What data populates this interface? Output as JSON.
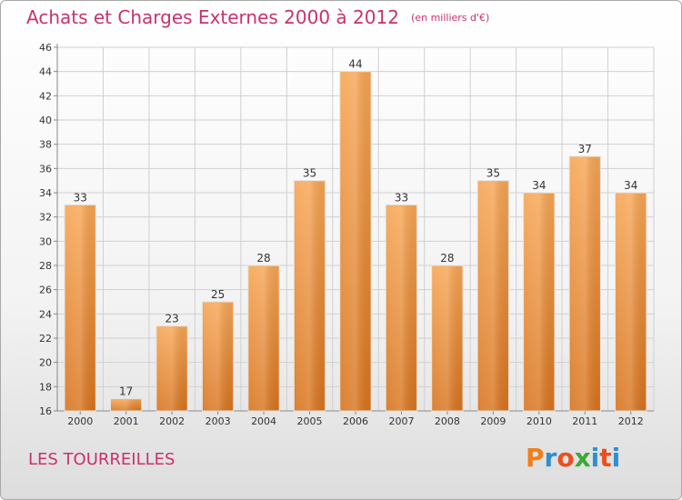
{
  "header": {
    "title": "Achats et Charges Externes 2000 à 2012",
    "subtitle": "(en milliers d'€)"
  },
  "footer": {
    "commune": "LES TOURREILLES",
    "logo_text": "Proxiti",
    "logo_colors": [
      "#f07f1a",
      "#2f8fd1",
      "#e8501f",
      "#3aaa35",
      "#2f8fd1",
      "#e8501f",
      "#2f8fd1"
    ]
  },
  "colors": {
    "bar_light": "#f7a655",
    "bar_dark": "#d8741e",
    "title": "#c8326e",
    "grid": "#d0d0d0",
    "axis": "#888888"
  },
  "chart_data": {
    "type": "bar",
    "title": "Achats et Charges Externes 2000 à 2012",
    "subtitle": "(en milliers d'€)",
    "xlabel": "",
    "ylabel": "",
    "categories": [
      "2000",
      "2001",
      "2002",
      "2003",
      "2004",
      "2005",
      "2006",
      "2007",
      "2008",
      "2009",
      "2010",
      "2011",
      "2012"
    ],
    "values": [
      33,
      17,
      23,
      25,
      28,
      35,
      44,
      33,
      28,
      35,
      34,
      37,
      34
    ],
    "ylim": [
      16,
      46
    ],
    "yticks": [
      16,
      18,
      20,
      22,
      24,
      26,
      28,
      30,
      32,
      34,
      36,
      38,
      40,
      42,
      44,
      46
    ],
    "grid": true,
    "data_labels": true,
    "legend": "none"
  }
}
